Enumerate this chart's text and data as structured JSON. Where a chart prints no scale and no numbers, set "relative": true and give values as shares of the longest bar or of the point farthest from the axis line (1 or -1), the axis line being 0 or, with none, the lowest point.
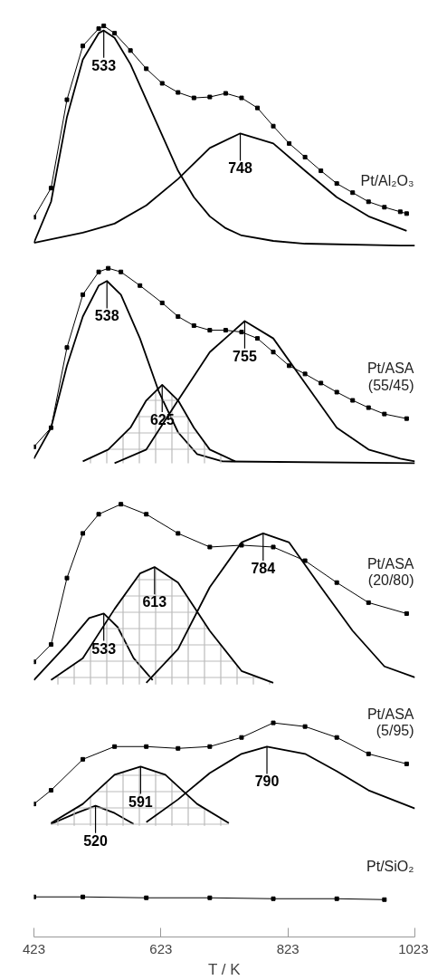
{
  "chart_data": {
    "type": "line",
    "relative": true,
    "xlabel": "T / K",
    "xlim": [
      423,
      1023
    ],
    "xticks": [
      423,
      623,
      823,
      1023
    ],
    "tick_labels": "x",
    "series": [
      {
        "name": "Pt/Al₂O₃",
        "color": "#000000",
        "marker": "square",
        "x": [
          423,
          450,
          475,
          500,
          525,
          533,
          550,
          575,
          600,
          625,
          650,
          675,
          700,
          725,
          750,
          775,
          800,
          825,
          850,
          875,
          900,
          925,
          950,
          975,
          1000,
          1010
        ],
        "values": [
          0.79,
          0.822,
          0.919,
          0.978,
          0.997,
          1.0,
          0.992,
          0.973,
          0.953,
          0.937,
          0.927,
          0.921,
          0.922,
          0.926,
          0.921,
          0.91,
          0.89,
          0.871,
          0.856,
          0.841,
          0.827,
          0.817,
          0.807,
          0.801,
          0.796,
          0.794
        ]
      },
      {
        "color": "#000000",
        "marker": "none",
        "x": [
          423,
          450,
          475,
          500,
          525,
          533,
          550,
          575,
          600,
          625,
          650,
          675,
          700,
          725,
          750,
          800,
          850,
          1000,
          1023
        ],
        "values": [
          0.762,
          0.807,
          0.9,
          0.963,
          0.992,
          0.995,
          0.987,
          0.958,
          0.919,
          0.88,
          0.841,
          0.812,
          0.791,
          0.778,
          0.77,
          0.764,
          0.761,
          0.759,
          0.759
        ]
      },
      {
        "color": "#000000",
        "marker": "none",
        "x": [
          423,
          500,
          550,
          600,
          650,
          700,
          748,
          800,
          850,
          900,
          950,
          1010
        ],
        "values": [
          0.762,
          0.773,
          0.783,
          0.803,
          0.832,
          0.866,
          0.882,
          0.871,
          0.841,
          0.812,
          0.791,
          0.775
        ]
      },
      {
        "name": "Pt/ASA\n(55/45)",
        "color": "#000000",
        "marker": "square",
        "x": [
          423,
          450,
          475,
          500,
          525,
          540,
          560,
          590,
          625,
          650,
          675,
          700,
          725,
          750,
          775,
          800,
          825,
          850,
          875,
          900,
          925,
          950,
          975,
          1010
        ],
        "values": [
          0.538,
          0.559,
          0.647,
          0.705,
          0.73,
          0.734,
          0.73,
          0.715,
          0.696,
          0.681,
          0.671,
          0.666,
          0.666,
          0.664,
          0.657,
          0.642,
          0.627,
          0.618,
          0.608,
          0.598,
          0.589,
          0.581,
          0.574,
          0.569
        ]
      },
      {
        "color": "#000000",
        "marker": "none",
        "x": [
          423,
          450,
          475,
          500,
          525,
          538,
          560,
          590,
          620,
          650,
          680,
          720,
          1023
        ],
        "values": [
          0.525,
          0.559,
          0.627,
          0.681,
          0.715,
          0.72,
          0.705,
          0.657,
          0.598,
          0.554,
          0.53,
          0.522,
          0.52
        ]
      },
      {
        "color": "#000000",
        "marker": "none",
        "x": [
          500,
          540,
          575,
          600,
          625,
          650,
          675,
          700,
          740
        ],
        "values": [
          0.522,
          0.535,
          0.559,
          0.589,
          0.606,
          0.589,
          0.559,
          0.535,
          0.522
        ],
        "lower": [
          0.52,
          0.52,
          0.52,
          0.52,
          0.52,
          0.52,
          0.52,
          0.52,
          0.52
        ],
        "upper": [
          0.522,
          0.535,
          0.559,
          0.589,
          0.606,
          0.589,
          0.559,
          0.535,
          0.522
        ]
      },
      {
        "color": "#000000",
        "marker": "none",
        "x": [
          550,
          600,
          650,
          700,
          755,
          800,
          850,
          900,
          950,
          1000,
          1023
        ],
        "values": [
          0.52,
          0.535,
          0.589,
          0.642,
          0.676,
          0.657,
          0.608,
          0.559,
          0.535,
          0.525,
          0.522
        ]
      },
      {
        "name": "Pt/ASA\n(20/80)",
        "color": "#000000",
        "marker": "square",
        "x": [
          423,
          450,
          475,
          500,
          525,
          560,
          600,
          650,
          700,
          750,
          800,
          850,
          900,
          950,
          1010
        ],
        "values": [
          0.302,
          0.321,
          0.394,
          0.443,
          0.464,
          0.475,
          0.464,
          0.443,
          0.428,
          0.43,
          0.428,
          0.413,
          0.389,
          0.367,
          0.355
        ]
      },
      {
        "color": "#000000",
        "marker": "none",
        "x": [
          423,
          475,
          510,
          533,
          555,
          580,
          610
        ],
        "values": [
          0.282,
          0.321,
          0.35,
          0.355,
          0.34,
          0.306,
          0.282
        ]
      },
      {
        "color": "#000000",
        "marker": "none",
        "x": [
          450,
          500,
          550,
          590,
          613,
          650,
          700,
          750,
          800
        ],
        "values": [
          0.282,
          0.306,
          0.36,
          0.399,
          0.406,
          0.389,
          0.336,
          0.292,
          0.279
        ],
        "lower": [
          0.277,
          0.277,
          0.277,
          0.277,
          0.277,
          0.277,
          0.277,
          0.277,
          0.277
        ],
        "upper": [
          0.282,
          0.306,
          0.36,
          0.399,
          0.406,
          0.389,
          0.336,
          0.292,
          0.279
        ]
      },
      {
        "color": "#000000",
        "marker": "none",
        "x": [
          600,
          650,
          700,
          750,
          784,
          825,
          875,
          925,
          975,
          1023
        ],
        "values": [
          0.279,
          0.316,
          0.384,
          0.433,
          0.443,
          0.433,
          0.384,
          0.336,
          0.297,
          0.285
        ]
      },
      {
        "name": "Pt/ASA\n(5/95)",
        "color": "#000000",
        "marker": "square",
        "x": [
          423,
          450,
          500,
          550,
          600,
          650,
          700,
          750,
          800,
          850,
          900,
          950,
          1010
        ],
        "values": [
          0.146,
          0.161,
          0.195,
          0.209,
          0.209,
          0.207,
          0.209,
          0.219,
          0.235,
          0.231,
          0.219,
          0.201,
          0.19
        ]
      },
      {
        "color": "#000000",
        "marker": "none",
        "x": [
          450,
          490,
          520,
          550,
          580
        ],
        "values": [
          0.124,
          0.136,
          0.144,
          0.136,
          0.124
        ]
      },
      {
        "color": "#000000",
        "marker": "none",
        "x": [
          450,
          500,
          550,
          591,
          630,
          680,
          730
        ],
        "values": [
          0.125,
          0.146,
          0.178,
          0.187,
          0.178,
          0.146,
          0.125
        ],
        "lower": [
          0.122,
          0.122,
          0.122,
          0.122,
          0.122,
          0.122,
          0.122
        ],
        "upper": [
          0.125,
          0.146,
          0.178,
          0.187,
          0.178,
          0.146,
          0.125
        ]
      },
      {
        "color": "#000000",
        "marker": "none",
        "x": [
          600,
          650,
          700,
          750,
          790,
          850,
          900,
          950,
          1023
        ],
        "values": [
          0.126,
          0.151,
          0.18,
          0.201,
          0.209,
          0.201,
          0.182,
          0.161,
          0.141
        ]
      },
      {
        "name": "Pt/SiO₂",
        "color": "#000000",
        "marker": "square",
        "x": [
          423,
          500,
          600,
          700,
          800,
          900,
          975
        ],
        "values": [
          0.044,
          0.044,
          0.043,
          0.043,
          0.042,
          0.042,
          0.041
        ]
      }
    ],
    "annotations": [
      {
        "text": "533",
        "x": 533,
        "y": 0.995
      },
      {
        "text": "748",
        "x": 748,
        "y": 0.882
      },
      {
        "text": "538",
        "x": 538,
        "y": 0.72
      },
      {
        "text": "625",
        "x": 625,
        "y": 0.606
      },
      {
        "text": "755",
        "x": 755,
        "y": 0.676
      },
      {
        "text": "533",
        "x": 533,
        "y": 0.355
      },
      {
        "text": "613",
        "x": 613,
        "y": 0.406
      },
      {
        "text": "784",
        "x": 784,
        "y": 0.443
      },
      {
        "text": "520",
        "x": 520,
        "y": 0.144
      },
      {
        "text": "591",
        "x": 591,
        "y": 0.187
      },
      {
        "text": "790",
        "x": 790,
        "y": 0.209
      }
    ]
  }
}
